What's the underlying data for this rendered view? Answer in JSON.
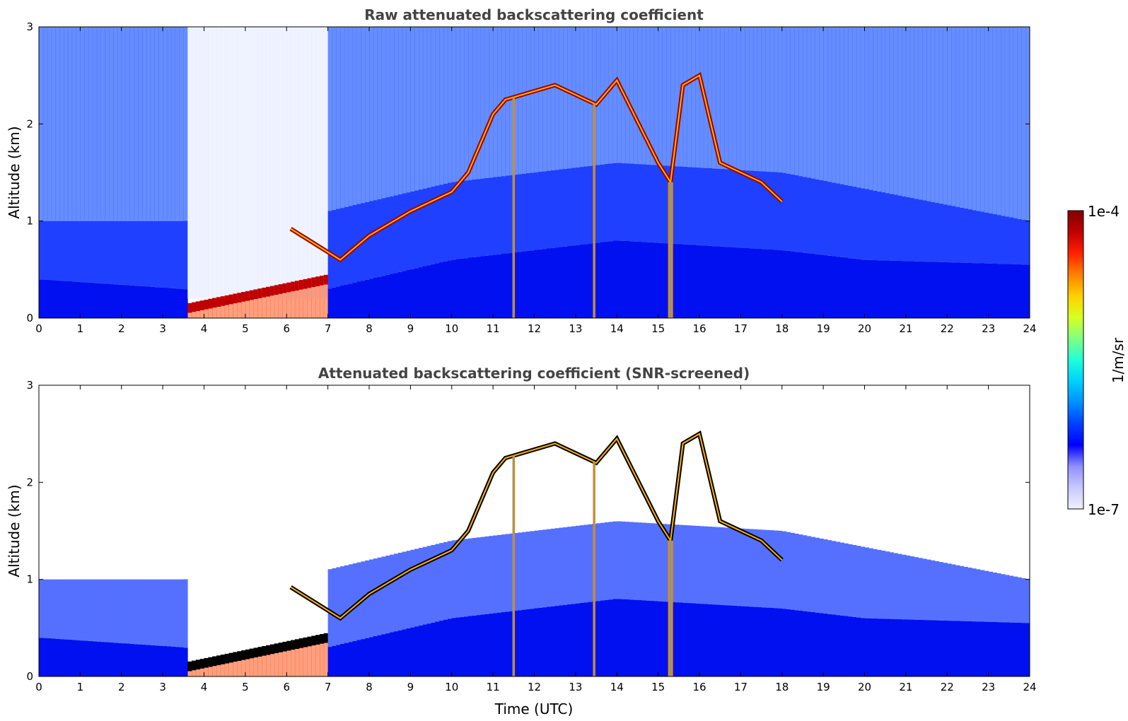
{
  "chart_data": [
    {
      "type": "heatmap",
      "title": "Raw attenuated backscattering coefficient",
      "xlabel": "",
      "ylabel": "Altitude (km)",
      "xlim": [
        0,
        24
      ],
      "ylim": [
        0,
        3
      ],
      "x_ticks": [
        "0",
        "1",
        "2",
        "3",
        "4",
        "5",
        "6",
        "7",
        "8",
        "9",
        "10",
        "11",
        "12",
        "13",
        "14",
        "15",
        "16",
        "17",
        "18",
        "19",
        "20",
        "21",
        "22",
        "23",
        "24"
      ],
      "y_ticks": [
        "0",
        "1",
        "2",
        "3"
      ],
      "colormap": "jet",
      "layers": {
        "boundary_layer_top_km": [
          [
            0,
            0.4
          ],
          [
            3.5,
            0.3
          ],
          [
            5,
            0.15
          ],
          [
            7,
            0.3
          ],
          [
            10,
            0.6
          ],
          [
            14,
            0.8
          ],
          [
            18,
            0.7
          ],
          [
            20,
            0.6
          ],
          [
            24,
            0.55
          ]
        ],
        "aerosol_mixing_top_km": [
          [
            0,
            1.0
          ],
          [
            3.5,
            1.0
          ],
          [
            7,
            1.1
          ],
          [
            10,
            1.4
          ],
          [
            14,
            1.6
          ],
          [
            18,
            1.5
          ],
          [
            24,
            1.0
          ]
        ],
        "fog_layer": {
          "start": 3.6,
          "end": 7.0,
          "top_start_km": 0.1,
          "top_end_km": 0.4
        },
        "cloud_base_km": [
          [
            6.1,
            0.92
          ],
          [
            7.3,
            0.6
          ],
          [
            8,
            0.85
          ],
          [
            9,
            1.1
          ],
          [
            10,
            1.3
          ],
          [
            10.4,
            1.5
          ],
          [
            10.7,
            1.8
          ],
          [
            11,
            2.1
          ],
          [
            11.3,
            2.25
          ],
          [
            12.5,
            2.4
          ],
          [
            13,
            2.3
          ],
          [
            13.5,
            2.2
          ],
          [
            14,
            2.45
          ],
          [
            15,
            1.6
          ],
          [
            15.3,
            1.4
          ],
          [
            15.6,
            2.4
          ],
          [
            16,
            2.5
          ],
          [
            16.5,
            1.6
          ],
          [
            17,
            1.5
          ],
          [
            17.5,
            1.4
          ],
          [
            18,
            1.2
          ]
        ],
        "precipitation_shafts": [
          [
            11.5,
            0.06
          ],
          [
            13.45,
            0.06
          ],
          [
            15.3,
            0.12
          ]
        ]
      }
    },
    {
      "type": "heatmap",
      "title": "Attenuated backscattering coefficient (SNR-screened)",
      "xlabel": "Time (UTC)",
      "ylabel": "Altitude (km)",
      "xlim": [
        0,
        24
      ],
      "ylim": [
        0,
        3
      ],
      "x_ticks": [
        "0",
        "1",
        "2",
        "3",
        "4",
        "5",
        "6",
        "7",
        "8",
        "9",
        "10",
        "11",
        "12",
        "13",
        "14",
        "15",
        "16",
        "17",
        "18",
        "19",
        "20",
        "21",
        "22",
        "23",
        "24"
      ],
      "y_ticks": [
        "0",
        "1",
        "2",
        "3"
      ],
      "colormap": "jet"
    }
  ],
  "colorbar": {
    "label": "1/m/sr",
    "max_label": "1e-4",
    "min_label": "1e-7",
    "colors": [
      "#f0f0ff",
      "#c8c8ff",
      "#9090ff",
      "#0000ff",
      "#0040ff",
      "#0090ff",
      "#00d0ff",
      "#20ffd8",
      "#80ff80",
      "#d8ff20",
      "#ffd000",
      "#ff8000",
      "#ff2000",
      "#c00000",
      "#800000"
    ]
  }
}
